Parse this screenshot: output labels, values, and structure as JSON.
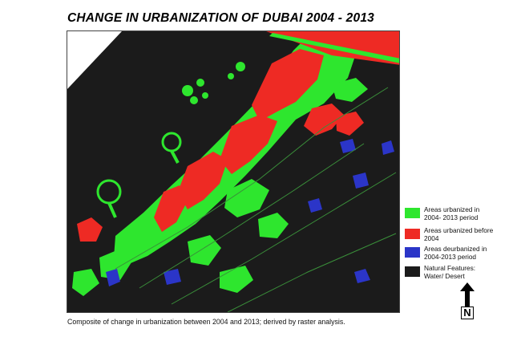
{
  "title": "CHANGE IN URBANIZATION OF DUBAI 2004 - 2013",
  "caption": "Composite of change in urbanization between 2004 and 2013; derived by raster analysis.",
  "legend": {
    "items": [
      {
        "label_line1": "Areas urbanized in",
        "label_line2": "2004- 2013 period",
        "color": "#2ee62e"
      },
      {
        "label_line1": "Areas urbanized before",
        "label_line2": "2004",
        "color": "#ee2a24"
      },
      {
        "label_line1": "Areas deurbanized in",
        "label_line2": "2004-2013 period",
        "color": "#2b35c8"
      },
      {
        "label_line1": "Natural Features:",
        "label_line2": "Water/ Desert",
        "color": "#1b1b1b"
      }
    ]
  },
  "north_arrow": {
    "letter": "N",
    "icon": "north-arrow-icon"
  },
  "map": {
    "colors": {
      "sea": "#1b1b1b",
      "outside": "#ffffff",
      "urbanized_new": "#2ee62e",
      "urbanized_before": "#ee2a24",
      "deurbanized": "#2b35c8",
      "roads": "#3a8f3a"
    }
  }
}
